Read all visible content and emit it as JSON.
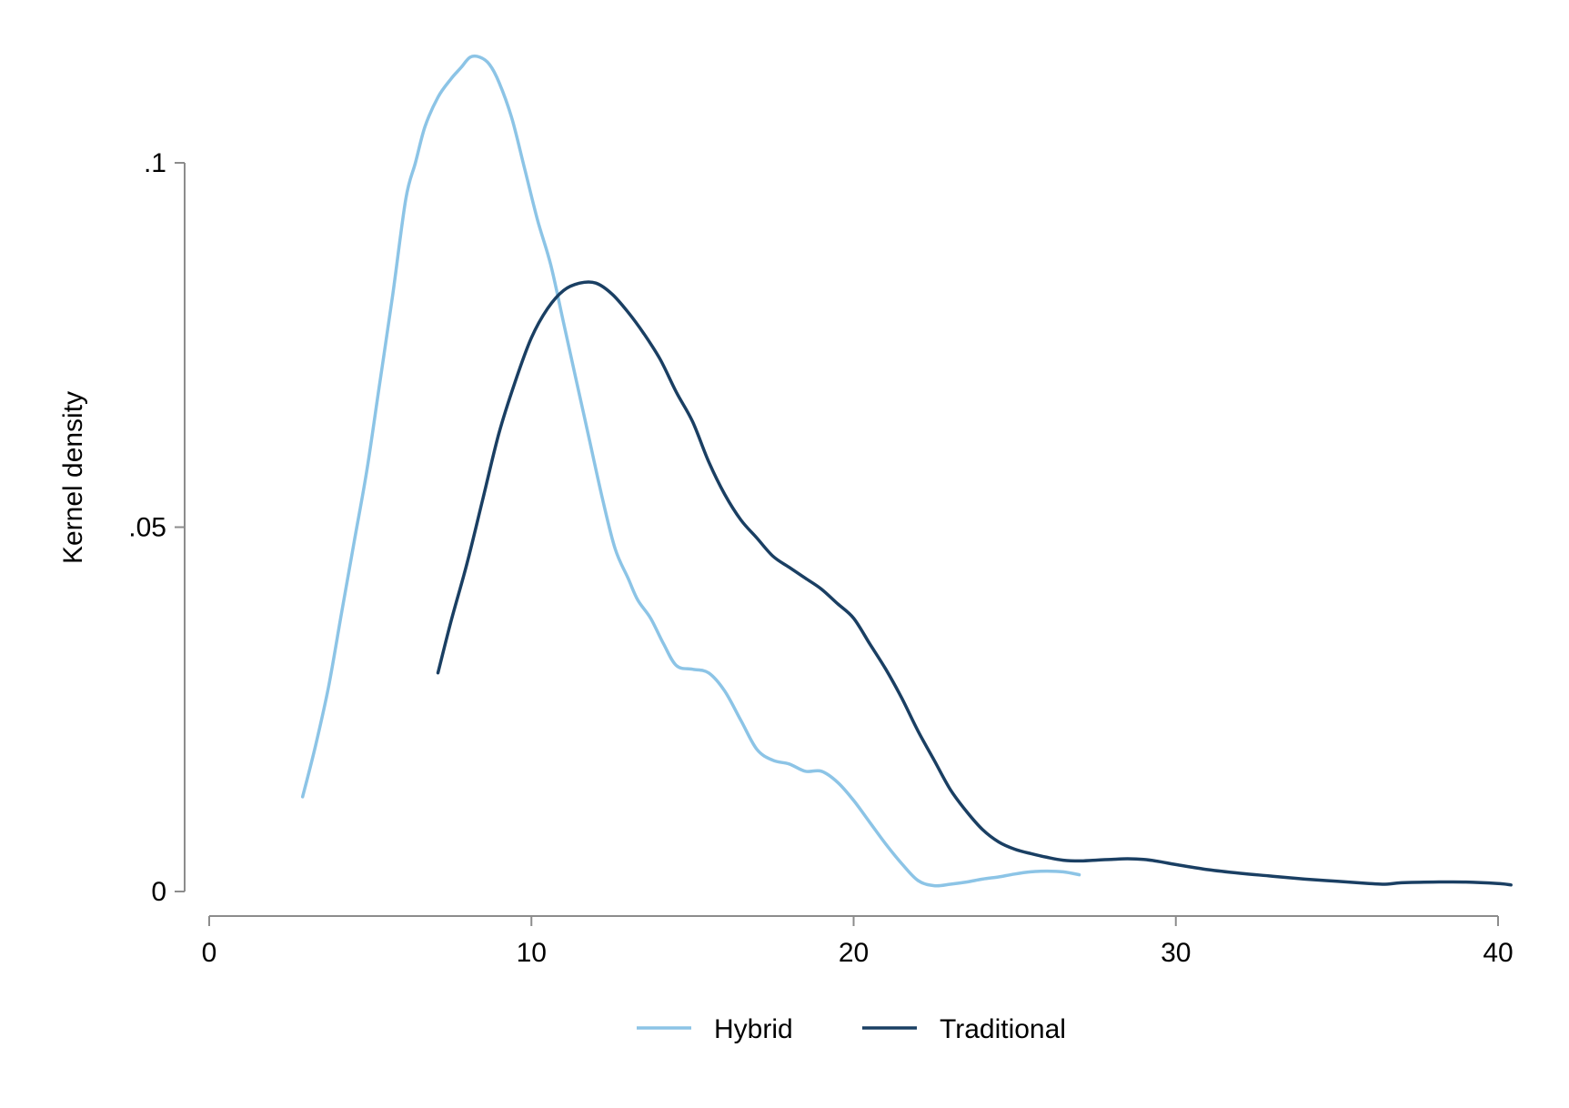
{
  "chart_data": {
    "type": "line",
    "xlabel": "",
    "ylabel": "Kernel density",
    "xlim": [
      0,
      40
    ],
    "ylim": [
      0,
      0.1
    ],
    "x_ticks": [
      {
        "value": 0,
        "label": "0"
      },
      {
        "value": 10,
        "label": "10"
      },
      {
        "value": 20,
        "label": "20"
      },
      {
        "value": 30,
        "label": "30"
      },
      {
        "value": 40,
        "label": "40"
      }
    ],
    "y_ticks": [
      {
        "value": 0,
        "label": "0"
      },
      {
        "value": 0.05,
        "label": ".05"
      },
      {
        "value": 0.1,
        "label": ".1"
      }
    ],
    "grid": false,
    "legend_position": "bottom",
    "series": [
      {
        "name": "Hybrid",
        "color": "#8cc4e6",
        "points": [
          [
            2.9,
            0.013
          ],
          [
            3.3,
            0.02
          ],
          [
            3.7,
            0.028
          ],
          [
            4.1,
            0.038
          ],
          [
            4.5,
            0.048
          ],
          [
            4.9,
            0.058
          ],
          [
            5.3,
            0.07
          ],
          [
            5.7,
            0.082
          ],
          [
            6.1,
            0.095
          ],
          [
            6.4,
            0.1
          ],
          [
            6.7,
            0.105
          ],
          [
            7.1,
            0.109
          ],
          [
            7.5,
            0.1115
          ],
          [
            7.8,
            0.113
          ],
          [
            8.1,
            0.1145
          ],
          [
            8.4,
            0.1145
          ],
          [
            8.7,
            0.1135
          ],
          [
            9.0,
            0.111
          ],
          [
            9.4,
            0.106
          ],
          [
            9.8,
            0.099
          ],
          [
            10.2,
            0.092
          ],
          [
            10.6,
            0.086
          ],
          [
            11.0,
            0.078
          ],
          [
            11.4,
            0.07
          ],
          [
            11.8,
            0.062
          ],
          [
            12.2,
            0.054
          ],
          [
            12.6,
            0.047
          ],
          [
            13.0,
            0.043
          ],
          [
            13.3,
            0.04
          ],
          [
            13.7,
            0.0375
          ],
          [
            14.1,
            0.034
          ],
          [
            14.5,
            0.031
          ],
          [
            15.0,
            0.0305
          ],
          [
            15.5,
            0.03
          ],
          [
            16.0,
            0.0275
          ],
          [
            16.5,
            0.0235
          ],
          [
            17.0,
            0.0195
          ],
          [
            17.5,
            0.018
          ],
          [
            18.0,
            0.0175
          ],
          [
            18.5,
            0.0165
          ],
          [
            19.0,
            0.0165
          ],
          [
            19.5,
            0.015
          ],
          [
            20.0,
            0.0125
          ],
          [
            20.5,
            0.0095
          ],
          [
            21.0,
            0.0065
          ],
          [
            21.5,
            0.0038
          ],
          [
            22.0,
            0.0015
          ],
          [
            22.5,
            0.0008
          ],
          [
            23.0,
            0.001
          ],
          [
            23.5,
            0.0013
          ],
          [
            24.0,
            0.0017
          ],
          [
            24.5,
            0.002
          ],
          [
            25.0,
            0.0024
          ],
          [
            25.5,
            0.0027
          ],
          [
            26.0,
            0.0028
          ],
          [
            26.5,
            0.0027
          ],
          [
            27.0,
            0.0023
          ]
        ]
      },
      {
        "name": "Traditional",
        "color": "#1a3f63",
        "points": [
          [
            7.1,
            0.03
          ],
          [
            7.5,
            0.037
          ],
          [
            8.0,
            0.045
          ],
          [
            8.5,
            0.054
          ],
          [
            9.0,
            0.063
          ],
          [
            9.5,
            0.07
          ],
          [
            10.0,
            0.076
          ],
          [
            10.5,
            0.08
          ],
          [
            11.0,
            0.0825
          ],
          [
            11.5,
            0.0835
          ],
          [
            12.0,
            0.0835
          ],
          [
            12.5,
            0.082
          ],
          [
            13.0,
            0.0795
          ],
          [
            13.5,
            0.0765
          ],
          [
            14.0,
            0.073
          ],
          [
            14.5,
            0.0685
          ],
          [
            15.0,
            0.0645
          ],
          [
            15.5,
            0.059
          ],
          [
            16.0,
            0.0545
          ],
          [
            16.5,
            0.051
          ],
          [
            17.0,
            0.0485
          ],
          [
            17.5,
            0.046
          ],
          [
            18.0,
            0.0445
          ],
          [
            18.5,
            0.043
          ],
          [
            19.0,
            0.0415
          ],
          [
            19.5,
            0.0395
          ],
          [
            20.0,
            0.0375
          ],
          [
            20.5,
            0.034
          ],
          [
            21.0,
            0.0305
          ],
          [
            21.5,
            0.0265
          ],
          [
            22.0,
            0.022
          ],
          [
            22.5,
            0.018
          ],
          [
            23.0,
            0.014
          ],
          [
            23.5,
            0.011
          ],
          [
            24.0,
            0.0085
          ],
          [
            24.5,
            0.0068
          ],
          [
            25.0,
            0.0058
          ],
          [
            25.5,
            0.0052
          ],
          [
            26.0,
            0.0047
          ],
          [
            26.5,
            0.0043
          ],
          [
            27.0,
            0.0042
          ],
          [
            27.5,
            0.0043
          ],
          [
            28.0,
            0.0044
          ],
          [
            28.5,
            0.0045
          ],
          [
            29.0,
            0.0044
          ],
          [
            29.5,
            0.0041
          ],
          [
            30.0,
            0.0037
          ],
          [
            31.0,
            0.003
          ],
          [
            32.0,
            0.0025
          ],
          [
            33.0,
            0.0021
          ],
          [
            34.0,
            0.0017
          ],
          [
            35.0,
            0.0014
          ],
          [
            36.0,
            0.0011
          ],
          [
            36.5,
            0.001
          ],
          [
            37.0,
            0.0012
          ],
          [
            38.0,
            0.0013
          ],
          [
            39.0,
            0.0013
          ],
          [
            40.0,
            0.0011
          ],
          [
            40.4,
            0.0009
          ]
        ]
      }
    ]
  }
}
